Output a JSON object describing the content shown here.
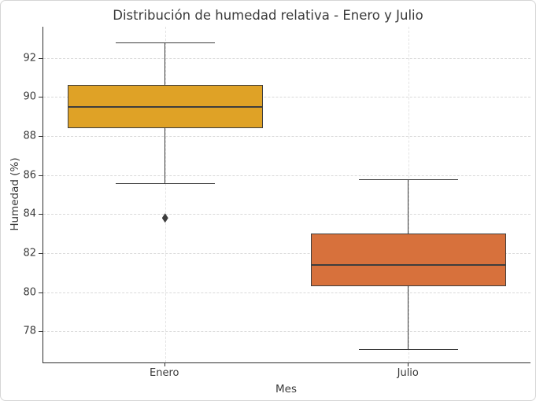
{
  "chart_data": {
    "type": "box",
    "title": "Distribución de humedad relativa - Enero y Julio",
    "xlabel": "Mes",
    "ylabel": "Humedad (%)",
    "categories": [
      "Enero",
      "Julio"
    ],
    "y_ticks": [
      78,
      80,
      82,
      84,
      86,
      88,
      90,
      92
    ],
    "ylim": [
      76.4,
      93.6
    ],
    "grid": {
      "horizontal": true,
      "vertical": true,
      "style": "dashed"
    },
    "legend": "none",
    "series": [
      {
        "name": "Enero",
        "whisker_low": 85.6,
        "q1": 88.4,
        "median": 89.5,
        "q3": 90.6,
        "whisker_high": 92.8,
        "outliers": [
          83.8
        ],
        "fill_color": "#dfa226"
      },
      {
        "name": "Julio",
        "whisker_low": 77.1,
        "q1": 80.3,
        "median": 81.4,
        "q3": 83.0,
        "whisker_high": 85.8,
        "outliers": [],
        "fill_color": "#d7713c"
      }
    ],
    "colors": {
      "box_edge": "#3d3d3d",
      "median_line": "#3d3d3d",
      "whisker": "#3d3d3d",
      "outlier": "#3d3d3d",
      "gridline": "#d9d9d9",
      "spine": "#2e2e2e",
      "text": "#3a3a3a",
      "background": "#ffffff"
    }
  }
}
